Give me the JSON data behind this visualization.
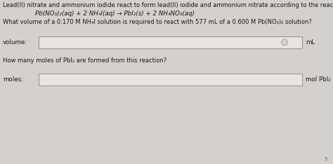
{
  "title_line": "Lead(II) nitrate and ammonium iodide react to form lead(II) iodide and ammonium nitrate according to the reaction",
  "equation": "Pb(NO₃)₂(aq) + 2 NH₄I(aq) → PbI₂(s) + 2 NH₄NO₃(aq)",
  "question1": "What volume of a 0.170 M NH₄I solution is required to react with 577 mL of a 0.600 M Pb(NO₃)₂ solution?",
  "label1": "volume:",
  "unit1": "mL",
  "question2": "How many moles of PbI₂ are formed from this reaction?",
  "label2": "moles:",
  "unit2": "mol PbI₂",
  "bg_color": "#d4d0cb",
  "box_color": "#e8e4de",
  "text_color": "#1a1a1a",
  "box_edge_color": "#999999",
  "circle_color": "#d4d0cb",
  "footnote": "5"
}
